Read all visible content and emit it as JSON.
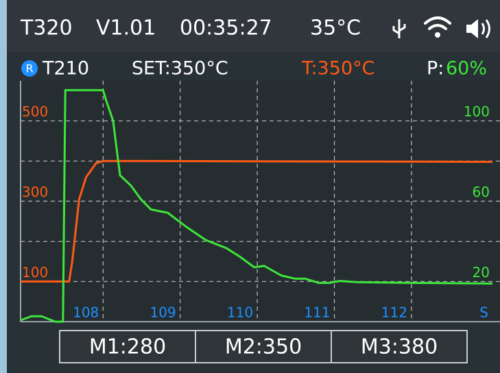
{
  "status_bar": {
    "model": "T320",
    "version": "V1.01",
    "time": "00:35:27",
    "ambient": "35°C"
  },
  "tool_bar": {
    "badge": "R",
    "tool": "T210",
    "set": "SET:350°C",
    "temp": "T:350°C",
    "power_label": "P:",
    "power": "60%"
  },
  "chart": {
    "type": "line",
    "xlim": [
      106.93,
      113.05
    ],
    "xticks": [
      108,
      109,
      110,
      111,
      112
    ],
    "x_unit": "S",
    "ylim": [
      0,
      600
    ],
    "yticks": [
      100,
      300,
      500
    ],
    "ygrid": [
      100,
      200,
      300,
      400,
      500
    ],
    "y2lim": [
      0,
      120
    ],
    "y2ticks": [
      20,
      60,
      100
    ],
    "series": [
      {
        "color": "#ff5a14",
        "axis": "y",
        "x": [
          106.93,
          107.56,
          107.6,
          107.69,
          107.78,
          107.91,
          108,
          108.44,
          113.05
        ],
        "values": [
          100,
          100,
          150,
          305,
          360,
          395,
          400,
          400,
          398
        ]
      },
      {
        "color": "#3ee63a",
        "axis": "y2",
        "x": [
          106.93,
          107.07,
          107.2,
          107.38,
          107.48,
          107.51,
          108,
          108.04,
          108.13,
          108.22,
          108.36,
          108.49,
          108.62,
          108.84,
          109.07,
          109.33,
          109.6,
          109.78,
          109.96,
          110.09,
          110.31,
          110.49,
          110.62,
          110.8,
          110.93,
          111.07,
          111.29,
          112,
          113.05
        ],
        "values": [
          0.7,
          2.7,
          2.7,
          0,
          0,
          115.3,
          115.3,
          110.2,
          100,
          72.9,
          67.8,
          61,
          55.9,
          54.2,
          47.5,
          40.7,
          36.6,
          32.2,
          27.1,
          27.8,
          23,
          21.4,
          21.4,
          19.3,
          19.3,
          20.3,
          19.7,
          19.3,
          19
        ]
      }
    ]
  },
  "presets": [
    "M1:280",
    "M2:350",
    "M3:380"
  ]
}
